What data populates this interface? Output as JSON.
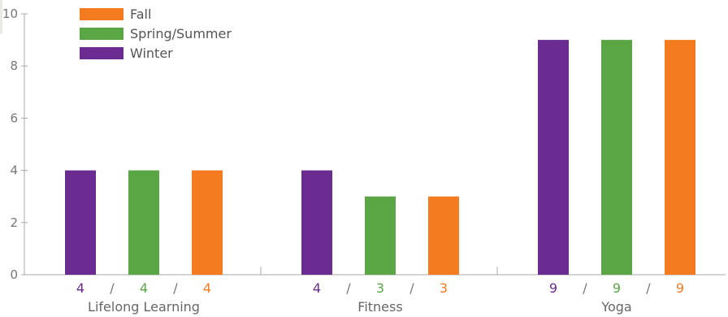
{
  "chart_data": {
    "type": "bar",
    "categories": [
      "Lifelong Learning",
      "Fitness",
      "Yoga"
    ],
    "series": [
      {
        "name": "Winter",
        "color": "#6a2c91",
        "values": [
          4,
          4,
          9
        ]
      },
      {
        "name": "Spring/Summer",
        "color": "#5aa645",
        "values": [
          4,
          3,
          9
        ]
      },
      {
        "name": "Fall",
        "color": "#f47b20",
        "values": [
          4,
          3,
          9
        ]
      }
    ],
    "legend_order": [
      "Fall",
      "Spring/Summer",
      "Winter"
    ],
    "legend_placement": "top-left",
    "separator": "/",
    "ylim": [
      0,
      10
    ],
    "yticks": [
      0,
      2,
      4,
      6,
      8,
      10
    ],
    "title": "",
    "xlabel": "",
    "ylabel": "",
    "grid": false
  }
}
